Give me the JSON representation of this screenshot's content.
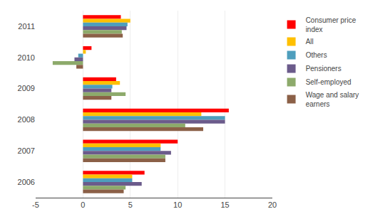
{
  "chart_data": {
    "type": "bar",
    "orientation": "horizontal",
    "categories": [
      "2011",
      "2010",
      "2009",
      "2008",
      "2007",
      "2006"
    ],
    "series": [
      {
        "name": "Consumer price\nindex",
        "color": "#FF0000",
        "values": [
          4.0,
          0.9,
          3.5,
          15.4,
          10.0,
          6.5
        ]
      },
      {
        "name": "All",
        "color": "#FFC000",
        "values": [
          5.0,
          0.3,
          3.9,
          12.5,
          8.2,
          5.2
        ]
      },
      {
        "name": "Others",
        "color": "#4E9EBD",
        "values": [
          4.7,
          -0.5,
          3.1,
          15.0,
          8.2,
          5.2
        ]
      },
      {
        "name": "Pensioners",
        "color": "#6B5B8B",
        "values": [
          4.6,
          -0.9,
          3.0,
          15.0,
          9.3,
          6.2
        ]
      },
      {
        "name": "Self-employed",
        "color": "#8DAA6B",
        "values": [
          4.1,
          -3.2,
          4.5,
          10.8,
          8.7,
          4.5
        ]
      },
      {
        "name": "Wage and salary\nearners",
        "color": "#8B6047",
        "values": [
          4.2,
          -0.7,
          3.0,
          12.7,
          8.7,
          4.3
        ]
      }
    ],
    "xlim": [
      -5,
      20
    ],
    "xticks": [
      -5,
      0,
      5,
      10,
      15,
      20
    ],
    "grid": true,
    "legend": "right"
  }
}
